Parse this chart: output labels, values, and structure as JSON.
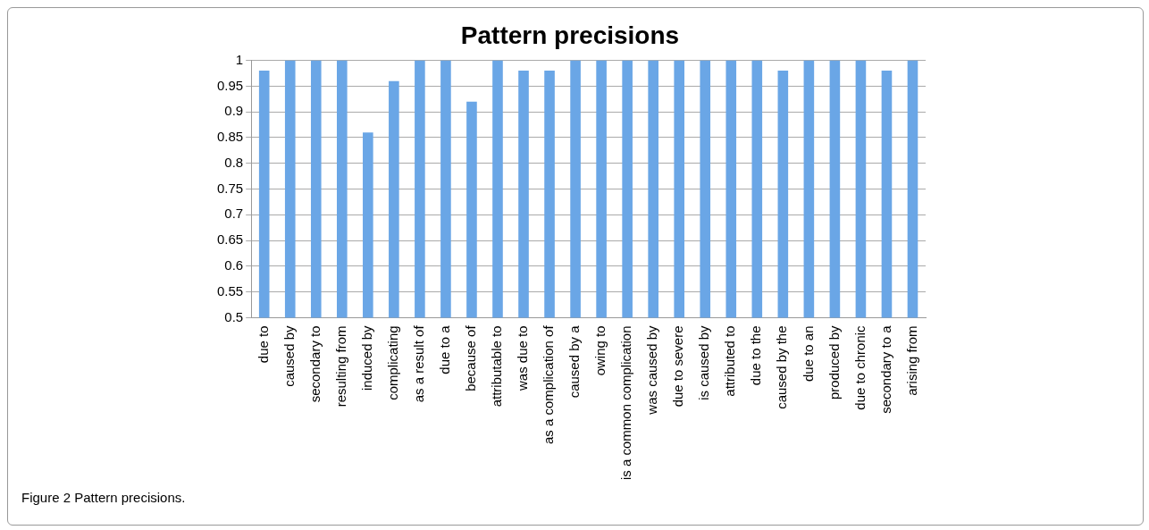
{
  "chart_data": {
    "type": "bar",
    "title": "Pattern precisions",
    "categories": [
      "due to",
      "caused by",
      "secondary to",
      "resulting from",
      "induced by",
      "complicating",
      "as a result of",
      "due to a",
      "because of",
      "attributable to",
      "was due to",
      "as a complication of",
      "caused by a",
      "owing to",
      "is a common complication",
      "was caused by",
      "due to severe",
      "is caused by",
      "attributed to",
      "due to the",
      "caused by the",
      "due to an",
      "produced by",
      "due to chronic",
      "secondary to a",
      "arising from"
    ],
    "values": [
      0.98,
      1,
      1,
      1,
      0.86,
      0.96,
      1,
      1,
      0.92,
      1,
      0.98,
      0.98,
      1,
      1,
      1,
      1,
      1,
      1,
      1,
      1,
      0.98,
      1,
      1,
      1,
      0.98,
      1
    ],
    "color": "#6aa6e6",
    "ylim": [
      0.5,
      1
    ],
    "yticks": [
      0.5,
      0.55,
      0.6,
      0.65,
      0.7,
      0.75,
      0.8,
      0.85,
      0.9,
      0.95,
      1
    ],
    "grid": "y",
    "legend": false,
    "annotations": [
      "Figure 2 Pattern precisions."
    ]
  }
}
